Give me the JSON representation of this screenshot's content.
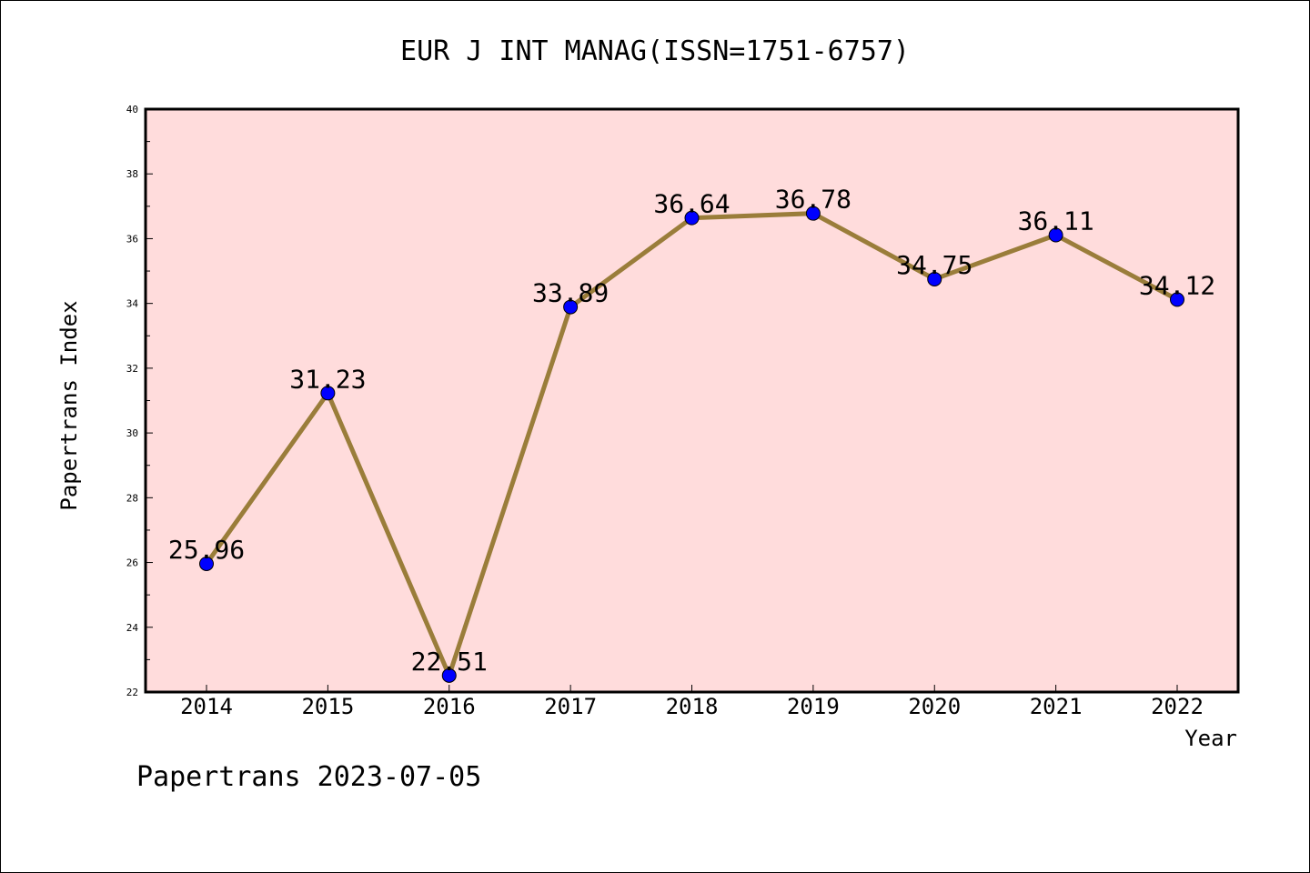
{
  "chart_data": {
    "type": "line",
    "title": "EUR J INT MANAG(ISSN=1751-6757)",
    "xlabel": "Year",
    "ylabel": "Papertrans Index",
    "categories": [
      "2014",
      "2015",
      "2016",
      "2017",
      "2018",
      "2019",
      "2020",
      "2021",
      "2022"
    ],
    "values": [
      25.96,
      31.23,
      22.51,
      33.89,
      36.64,
      36.78,
      34.75,
      36.11,
      34.12
    ],
    "data_labels": [
      "25.96",
      "31.23",
      "22.51",
      "33.89",
      "36.64",
      "36.78",
      "34.75",
      "36.11",
      "34.12"
    ],
    "ylim": [
      22,
      40
    ],
    "yticks": [
      22,
      24,
      26,
      28,
      30,
      32,
      34,
      36,
      38,
      40
    ],
    "ytick_labels": [
      "22",
      "24",
      "26",
      "28",
      "30",
      "32",
      "34",
      "36",
      "38",
      "40"
    ],
    "grid": false,
    "colors": {
      "plot_background": "#ffdcdc",
      "line": "#9a7d3a",
      "marker": "#0000ff"
    }
  },
  "footer": "Papertrans 2023-07-05"
}
